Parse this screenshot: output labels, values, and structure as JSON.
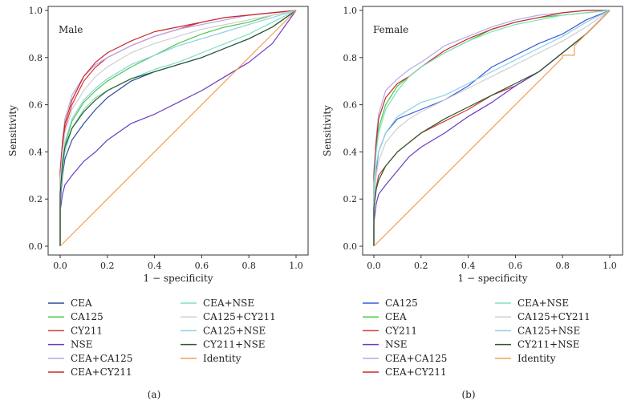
{
  "colors": {
    "CEA_male": "#2e4a9e",
    "CA125": "#4ec84a",
    "CY211": "#d23a3a",
    "NSE": "#6a3bc4",
    "CEA+CA125": "#b8a8e8",
    "CEA+CY211": "#c8282c",
    "CEA+NSE": "#7ee0c0",
    "CA125+CY211": "#cfcfcf",
    "CA125+NSE": "#8fd0e6",
    "CY211+NSE": "#2b5a2b",
    "Identity": "#f0a050",
    "CA125_female": "#3a5ad8",
    "CEA_female": "#3ed03a"
  },
  "chart_data": [
    {
      "type": "line",
      "panel_label": "Male",
      "caption": "(a)",
      "xlabel": "1 − specificity",
      "ylabel": "Sensitivity",
      "xlim": [
        0,
        1
      ],
      "ylim": [
        0,
        1
      ],
      "xticks": [
        "0.0",
        "0.2",
        "0.4",
        "0.6",
        "0.8",
        "1.0"
      ],
      "yticks": [
        "0.0",
        "0.2",
        "0.4",
        "0.6",
        "0.8",
        "1.0"
      ],
      "series": [
        {
          "name": "CEA",
          "color": "#2e4a9e",
          "x": [
            0,
            0,
            0.01,
            0.02,
            0.05,
            0.1,
            0.15,
            0.2,
            0.3,
            0.4,
            0.5,
            0.6,
            0.7,
            0.8,
            0.9,
            1.0
          ],
          "y": [
            0,
            0.18,
            0.3,
            0.37,
            0.45,
            0.52,
            0.58,
            0.63,
            0.7,
            0.74,
            0.77,
            0.8,
            0.84,
            0.88,
            0.93,
            1.0
          ]
        },
        {
          "name": "CA125",
          "color": "#4ec84a",
          "x": [
            0,
            0,
            0.01,
            0.02,
            0.05,
            0.1,
            0.15,
            0.2,
            0.3,
            0.4,
            0.5,
            0.6,
            0.7,
            0.8,
            0.9,
            1.0
          ],
          "y": [
            0,
            0.22,
            0.35,
            0.43,
            0.53,
            0.61,
            0.66,
            0.7,
            0.76,
            0.81,
            0.86,
            0.9,
            0.93,
            0.95,
            0.98,
            1.0
          ]
        },
        {
          "name": "CY211",
          "color": "#d23a3a",
          "x": [
            0,
            0,
            0.01,
            0.02,
            0.05,
            0.1,
            0.15,
            0.2,
            0.3,
            0.4,
            0.5,
            0.6,
            0.7,
            0.8,
            0.9,
            1.0
          ],
          "y": [
            0,
            0.3,
            0.42,
            0.5,
            0.6,
            0.7,
            0.76,
            0.8,
            0.85,
            0.89,
            0.92,
            0.95,
            0.97,
            0.98,
            0.99,
            1.0
          ]
        },
        {
          "name": "NSE",
          "color": "#6a3bc4",
          "x": [
            0,
            0,
            0.01,
            0.02,
            0.05,
            0.1,
            0.15,
            0.2,
            0.3,
            0.4,
            0.5,
            0.6,
            0.7,
            0.8,
            0.9,
            1.0
          ],
          "y": [
            0,
            0.15,
            0.22,
            0.26,
            0.3,
            0.36,
            0.4,
            0.45,
            0.52,
            0.56,
            0.61,
            0.66,
            0.72,
            0.78,
            0.86,
            1.0
          ]
        },
        {
          "name": "CEA+CA125",
          "color": "#b8a8e8",
          "x": [
            0,
            0,
            0.01,
            0.02,
            0.05,
            0.1,
            0.15,
            0.2,
            0.3,
            0.4,
            0.5,
            0.6,
            0.7,
            0.8,
            0.9,
            1.0
          ],
          "y": [
            0,
            0.3,
            0.45,
            0.54,
            0.64,
            0.72,
            0.77,
            0.8,
            0.85,
            0.89,
            0.92,
            0.94,
            0.96,
            0.98,
            0.99,
            1.0
          ]
        },
        {
          "name": "CEA+CY211",
          "color": "#c8282c",
          "x": [
            0,
            0,
            0.01,
            0.02,
            0.05,
            0.1,
            0.15,
            0.2,
            0.3,
            0.4,
            0.5,
            0.6,
            0.7,
            0.8,
            0.9,
            1.0
          ],
          "y": [
            0,
            0.32,
            0.44,
            0.52,
            0.62,
            0.72,
            0.78,
            0.82,
            0.87,
            0.91,
            0.93,
            0.95,
            0.97,
            0.98,
            0.99,
            1.0
          ]
        },
        {
          "name": "CEA+NSE",
          "color": "#7ee0c0",
          "x": [
            0,
            0,
            0.01,
            0.02,
            0.05,
            0.1,
            0.15,
            0.2,
            0.3,
            0.4,
            0.5,
            0.6,
            0.7,
            0.8,
            0.9,
            1.0
          ],
          "y": [
            0,
            0.2,
            0.32,
            0.4,
            0.5,
            0.58,
            0.63,
            0.66,
            0.71,
            0.75,
            0.78,
            0.82,
            0.86,
            0.9,
            0.95,
            1.0
          ]
        },
        {
          "name": "CA125+CY211",
          "color": "#cfcfcf",
          "x": [
            0,
            0,
            0.01,
            0.02,
            0.05,
            0.1,
            0.15,
            0.2,
            0.3,
            0.4,
            0.5,
            0.6,
            0.7,
            0.8,
            0.9,
            1.0
          ],
          "y": [
            0,
            0.28,
            0.4,
            0.48,
            0.58,
            0.66,
            0.72,
            0.76,
            0.82,
            0.86,
            0.89,
            0.92,
            0.94,
            0.96,
            0.98,
            1.0
          ]
        },
        {
          "name": "CA125+NSE",
          "color": "#8fd0e6",
          "x": [
            0,
            0,
            0.01,
            0.02,
            0.05,
            0.1,
            0.15,
            0.2,
            0.3,
            0.4,
            0.5,
            0.6,
            0.7,
            0.8,
            0.9,
            1.0
          ],
          "y": [
            0,
            0.22,
            0.36,
            0.44,
            0.54,
            0.62,
            0.67,
            0.71,
            0.77,
            0.81,
            0.85,
            0.88,
            0.91,
            0.94,
            0.97,
            1.0
          ]
        },
        {
          "name": "CY211+NSE",
          "color": "#2b5a2b",
          "x": [
            0,
            0,
            0.01,
            0.02,
            0.05,
            0.1,
            0.15,
            0.2,
            0.3,
            0.4,
            0.5,
            0.6,
            0.7,
            0.8,
            0.9,
            1.0
          ],
          "y": [
            0,
            0.22,
            0.35,
            0.42,
            0.5,
            0.57,
            0.62,
            0.66,
            0.71,
            0.74,
            0.77,
            0.8,
            0.84,
            0.88,
            0.93,
            1.0
          ]
        },
        {
          "name": "Identity",
          "color": "#f0a050",
          "x": [
            0,
            1
          ],
          "y": [
            0,
            1
          ]
        }
      ],
      "legend": {
        "left": [
          "CEA",
          "CA125",
          "CY211",
          "NSE",
          "CEA+CA125",
          "CEA+CY211"
        ],
        "right": [
          "CEA+NSE",
          "CA125+CY211",
          "CA125+NSE",
          "CY211+NSE",
          "Identity"
        ]
      }
    },
    {
      "type": "line",
      "panel_label": "Female",
      "caption": "(b)",
      "xlabel": "1 − specificity",
      "ylabel": "Sensitivity",
      "xlim": [
        0,
        1
      ],
      "ylim": [
        0,
        1
      ],
      "xticks": [
        "0.0",
        "0.2",
        "0.4",
        "0.6",
        "0.8",
        "1.0"
      ],
      "yticks": [
        "0.0",
        "0.2",
        "0.4",
        "0.6",
        "0.8",
        "1.0"
      ],
      "series": [
        {
          "name": "CA125",
          "color": "#3a5ad8",
          "x": [
            0,
            0,
            0.01,
            0.02,
            0.05,
            0.1,
            0.15,
            0.2,
            0.3,
            0.4,
            0.5,
            0.6,
            0.7,
            0.8,
            0.9,
            1.0
          ],
          "y": [
            0,
            0.2,
            0.32,
            0.4,
            0.48,
            0.54,
            0.56,
            0.58,
            0.62,
            0.68,
            0.76,
            0.81,
            0.86,
            0.9,
            0.96,
            1.0
          ]
        },
        {
          "name": "CEA",
          "color": "#3ed03a",
          "x": [
            0,
            0,
            0.01,
            0.02,
            0.05,
            0.1,
            0.15,
            0.2,
            0.3,
            0.4,
            0.5,
            0.6,
            0.7,
            0.8,
            0.9,
            1.0
          ],
          "y": [
            0,
            0.28,
            0.42,
            0.5,
            0.6,
            0.68,
            0.72,
            0.76,
            0.82,
            0.87,
            0.92,
            0.95,
            0.97,
            0.98,
            0.99,
            1.0
          ]
        },
        {
          "name": "CY211",
          "color": "#d23a3a",
          "x": [
            0,
            0,
            0.01,
            0.02,
            0.05,
            0.1,
            0.15,
            0.2,
            0.3,
            0.4,
            0.5,
            0.6,
            0.7,
            0.8,
            0.9,
            1.0
          ],
          "y": [
            0,
            0.18,
            0.25,
            0.3,
            0.34,
            0.4,
            0.44,
            0.48,
            0.53,
            0.58,
            0.64,
            0.68,
            0.74,
            0.82,
            0.9,
            1.0
          ]
        },
        {
          "name": "NSE",
          "color": "#6a3bc4",
          "x": [
            0,
            0,
            0.01,
            0.02,
            0.05,
            0.1,
            0.15,
            0.2,
            0.3,
            0.4,
            0.5,
            0.6,
            0.7,
            0.8,
            0.9,
            1.0
          ],
          "y": [
            0,
            0.1,
            0.18,
            0.22,
            0.26,
            0.32,
            0.38,
            0.42,
            0.48,
            0.55,
            0.61,
            0.68,
            0.74,
            0.82,
            0.9,
            1.0
          ]
        },
        {
          "name": "CEA+CA125",
          "color": "#b8a8e8",
          "x": [
            0,
            0,
            0.01,
            0.02,
            0.05,
            0.1,
            0.15,
            0.2,
            0.3,
            0.4,
            0.5,
            0.6,
            0.7,
            0.8,
            0.9,
            1.0
          ],
          "y": [
            0,
            0.32,
            0.46,
            0.56,
            0.66,
            0.71,
            0.75,
            0.78,
            0.85,
            0.89,
            0.93,
            0.96,
            0.98,
            0.99,
            1.0,
            1.0
          ]
        },
        {
          "name": "CEA+CY211",
          "color": "#c8282c",
          "x": [
            0,
            0,
            0.01,
            0.02,
            0.05,
            0.1,
            0.15,
            0.2,
            0.3,
            0.4,
            0.5,
            0.6,
            0.7,
            0.8,
            0.9,
            1.0
          ],
          "y": [
            0,
            0.3,
            0.44,
            0.54,
            0.63,
            0.69,
            0.72,
            0.76,
            0.83,
            0.88,
            0.92,
            0.95,
            0.97,
            0.99,
            1.0,
            1.0
          ]
        },
        {
          "name": "CEA+NSE",
          "color": "#7ee0c0",
          "x": [
            0,
            0,
            0.01,
            0.02,
            0.05,
            0.1,
            0.15,
            0.2,
            0.3,
            0.4,
            0.5,
            0.6,
            0.7,
            0.8,
            0.9,
            1.0
          ],
          "y": [
            0,
            0.26,
            0.4,
            0.48,
            0.58,
            0.66,
            0.72,
            0.76,
            0.82,
            0.87,
            0.91,
            0.94,
            0.96,
            0.98,
            0.99,
            1.0
          ]
        },
        {
          "name": "CA125+CY211",
          "color": "#cfcfcf",
          "x": [
            0,
            0,
            0.01,
            0.02,
            0.05,
            0.1,
            0.15,
            0.2,
            0.3,
            0.4,
            0.5,
            0.6,
            0.7,
            0.8,
            0.9,
            1.0
          ],
          "y": [
            0,
            0.2,
            0.3,
            0.36,
            0.44,
            0.5,
            0.54,
            0.57,
            0.62,
            0.67,
            0.72,
            0.77,
            0.82,
            0.87,
            0.93,
            1.0
          ]
        },
        {
          "name": "CA125+NSE",
          "color": "#8fd0e6",
          "x": [
            0,
            0,
            0.01,
            0.02,
            0.05,
            0.1,
            0.15,
            0.2,
            0.3,
            0.4,
            0.5,
            0.6,
            0.7,
            0.8,
            0.9,
            1.0
          ],
          "y": [
            0,
            0.22,
            0.34,
            0.4,
            0.48,
            0.55,
            0.58,
            0.61,
            0.64,
            0.69,
            0.74,
            0.79,
            0.84,
            0.89,
            0.95,
            1.0
          ]
        },
        {
          "name": "CY211+NSE",
          "color": "#2b5a2b",
          "x": [
            0,
            0,
            0.01,
            0.02,
            0.05,
            0.1,
            0.15,
            0.2,
            0.3,
            0.4,
            0.5,
            0.6,
            0.7,
            0.8,
            0.9,
            1.0
          ],
          "y": [
            0,
            0.16,
            0.24,
            0.28,
            0.34,
            0.4,
            0.44,
            0.48,
            0.54,
            0.59,
            0.64,
            0.69,
            0.74,
            0.82,
            0.9,
            1.0
          ]
        },
        {
          "name": "Identity",
          "color": "#f0a050",
          "x": [
            0,
            0.8,
            0.8,
            0.85,
            0.85,
            1.0
          ],
          "y": [
            0,
            0.8,
            0.81,
            0.81,
            0.85,
            1.0
          ]
        }
      ],
      "legend": {
        "left": [
          "CA125",
          "CEA",
          "CY211",
          "NSE",
          "CEA+CA125",
          "CEA+CY211"
        ],
        "right": [
          "CEA+NSE",
          "CA125+CY211",
          "CA125+NSE",
          "CY211+NSE",
          "Identity"
        ]
      }
    }
  ]
}
